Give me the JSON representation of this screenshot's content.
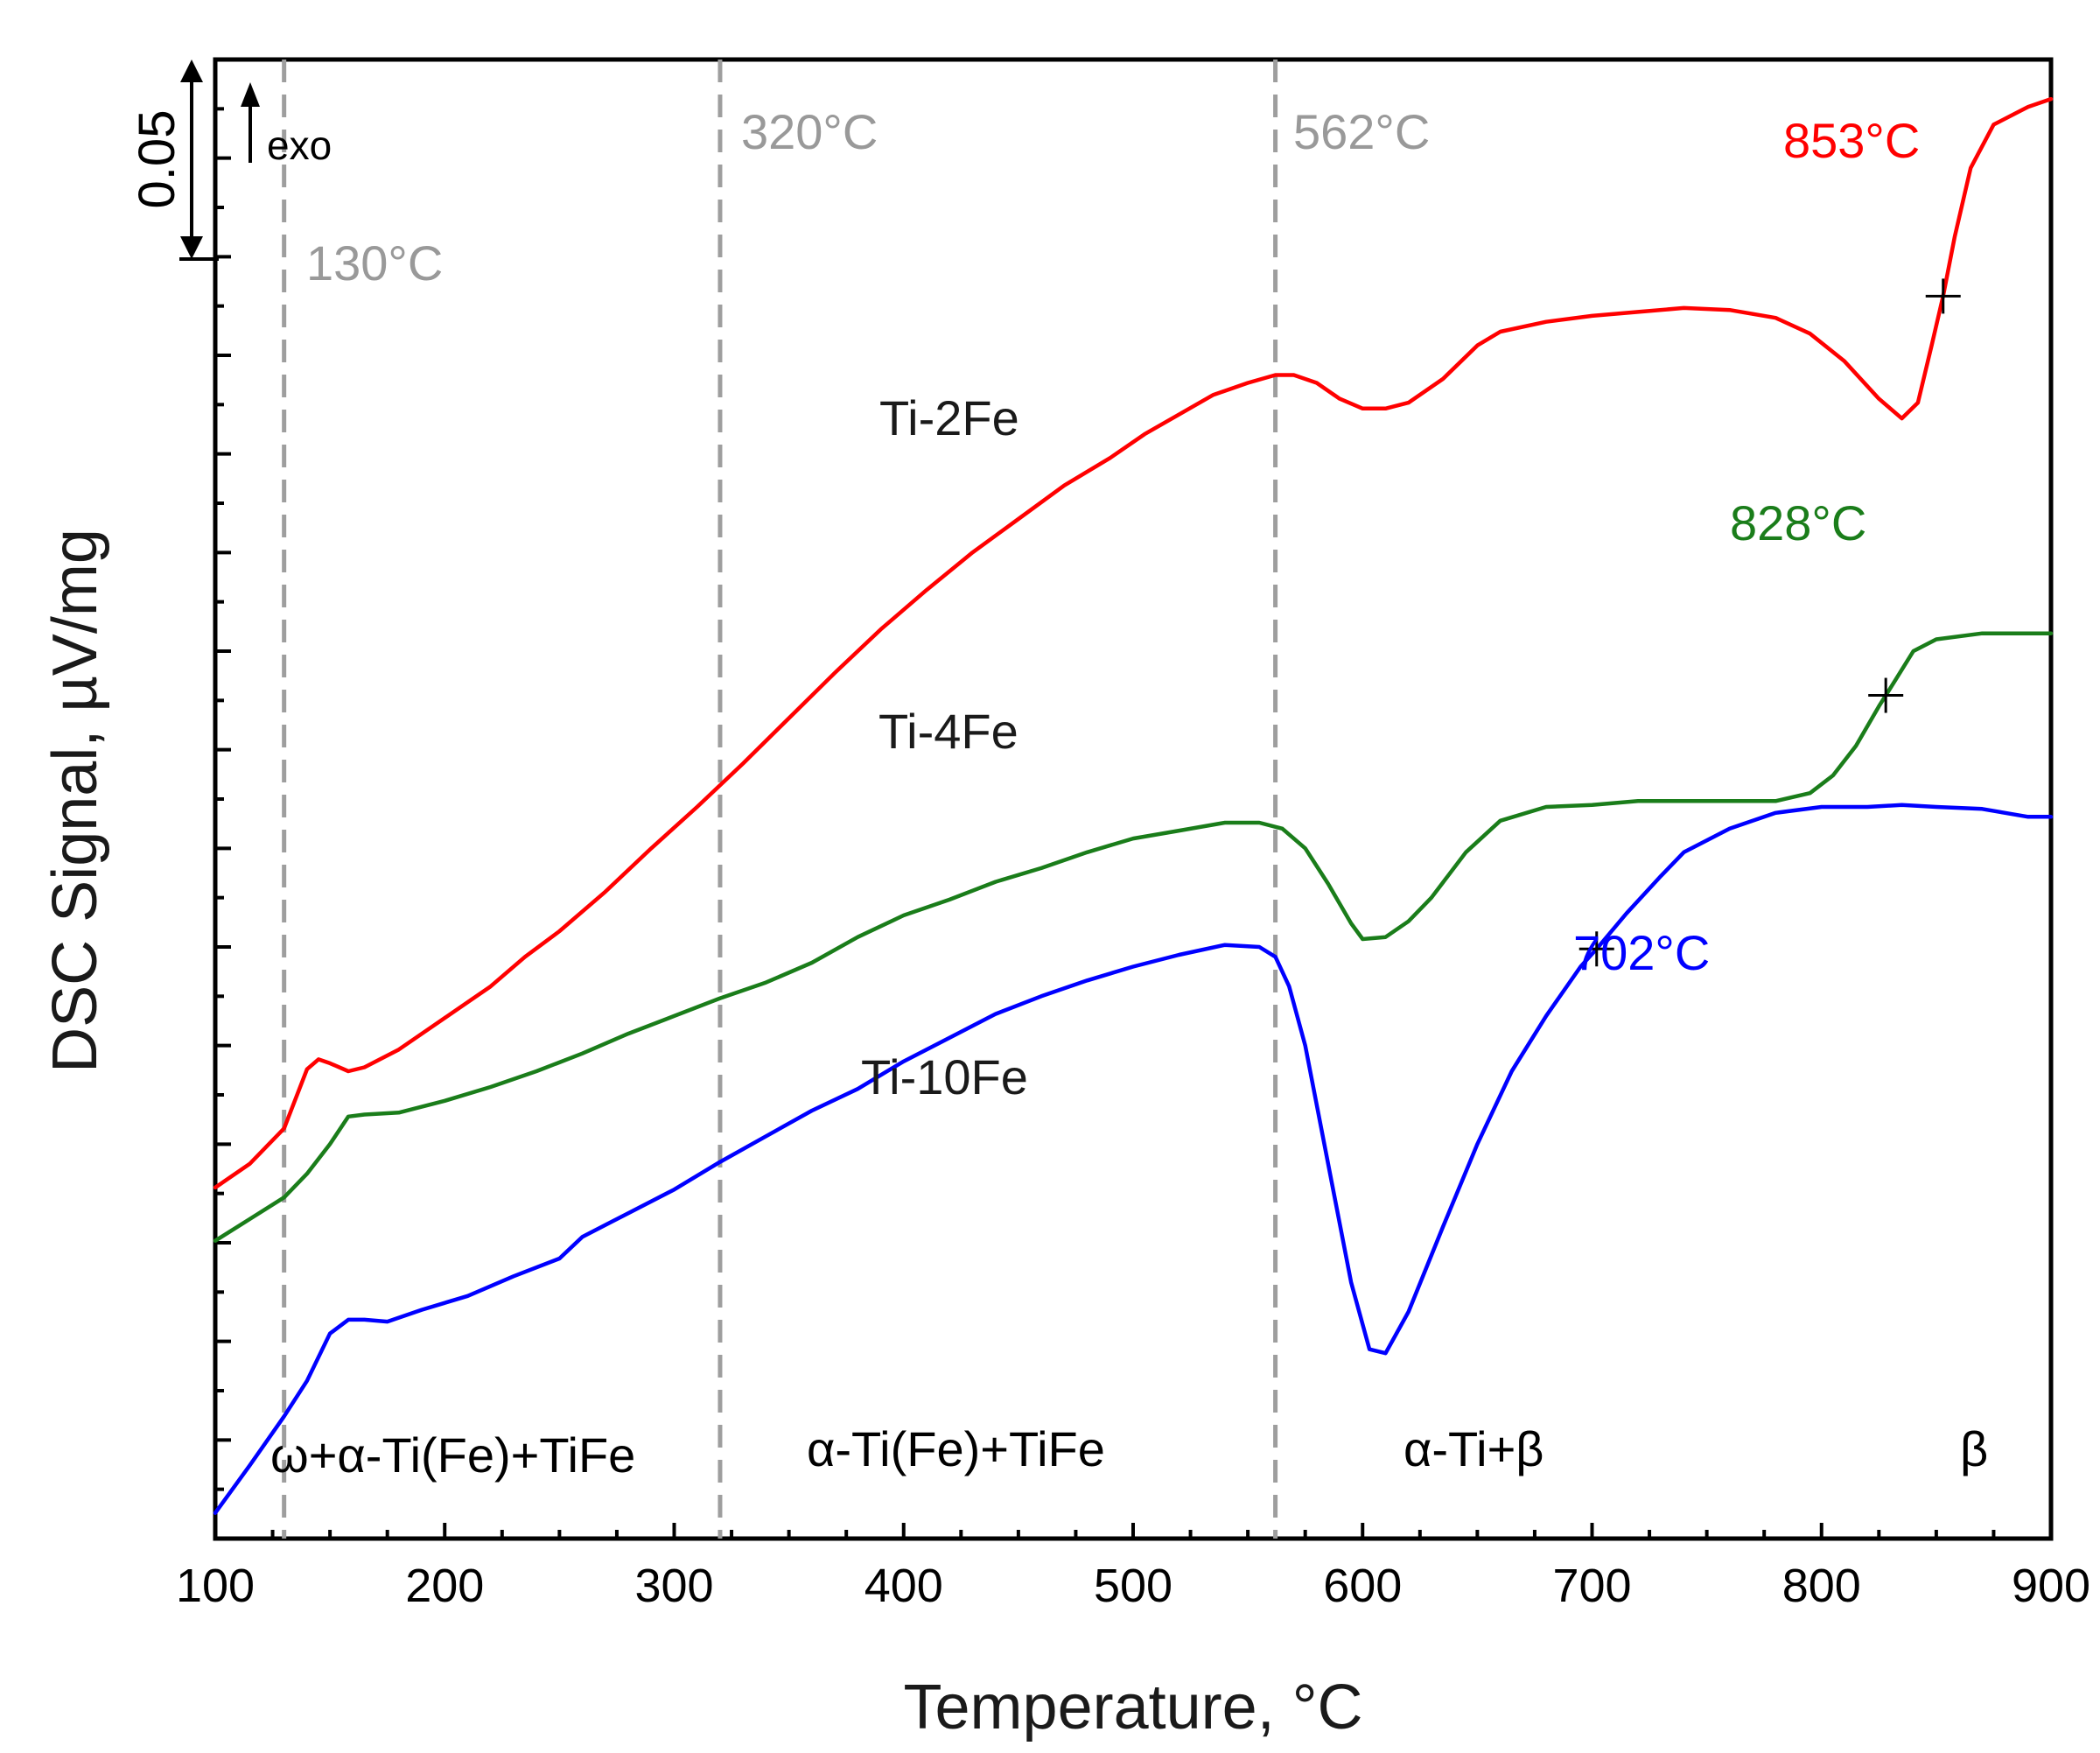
{
  "chart_data": {
    "type": "line",
    "title": "",
    "xlabel": "Temperature, °C",
    "ylabel": "DSC Signal, µV/mg",
    "xlim": [
      100,
      900
    ],
    "ylim": [
      -0.15,
      0.6
    ],
    "x_ticks": [
      "100",
      "200",
      "300",
      "400",
      "500",
      "600",
      "700",
      "800",
      "900"
    ],
    "y_tick_labels_shown": false,
    "grid": false,
    "scale_bar": {
      "label": "0.05",
      "value": 0.05
    },
    "exo_label": "exo",
    "vertical_lines": [
      {
        "x": 130,
        "label": "130°C"
      },
      {
        "x": 320,
        "label": "320°C"
      },
      {
        "x": 562,
        "label": "562°C"
      }
    ],
    "regions": [
      {
        "label": "ω+α-Ti(Fe)+TiFe",
        "x_center": 215
      },
      {
        "label": "α-Ti(Fe)+TiFe",
        "x_center": 442
      },
      {
        "label": "α-Ti+β",
        "x_center": 660
      },
      {
        "label": "β",
        "x_center": 865
      }
    ],
    "series": [
      {
        "name": "Ti-2Fe",
        "color": "#ff0000",
        "label_x": 472,
        "marker": {
          "x": 853,
          "label": "853°C"
        },
        "points": [
          [
            100,
            0.028
          ],
          [
            115,
            0.04
          ],
          [
            130,
            0.058
          ],
          [
            140,
            0.088
          ],
          [
            145,
            0.093
          ],
          [
            150,
            0.091
          ],
          [
            158,
            0.087
          ],
          [
            165,
            0.089
          ],
          [
            180,
            0.098
          ],
          [
            200,
            0.114
          ],
          [
            220,
            0.13
          ],
          [
            235,
            0.145
          ],
          [
            250,
            0.158
          ],
          [
            270,
            0.178
          ],
          [
            290,
            0.2
          ],
          [
            310,
            0.221
          ],
          [
            330,
            0.243
          ],
          [
            350,
            0.266
          ],
          [
            370,
            0.289
          ],
          [
            390,
            0.311
          ],
          [
            410,
            0.331
          ],
          [
            430,
            0.35
          ],
          [
            450,
            0.367
          ],
          [
            470,
            0.384
          ],
          [
            490,
            0.398
          ],
          [
            505,
            0.41
          ],
          [
            520,
            0.42
          ],
          [
            535,
            0.43
          ],
          [
            550,
            0.436
          ],
          [
            562,
            0.44
          ],
          [
            570,
            0.44
          ],
          [
            580,
            0.436
          ],
          [
            590,
            0.428
          ],
          [
            600,
            0.423
          ],
          [
            610,
            0.423
          ],
          [
            620,
            0.426
          ],
          [
            635,
            0.438
          ],
          [
            650,
            0.455
          ],
          [
            660,
            0.462
          ],
          [
            680,
            0.467
          ],
          [
            700,
            0.47
          ],
          [
            720,
            0.472
          ],
          [
            740,
            0.474
          ],
          [
            760,
            0.473
          ],
          [
            780,
            0.469
          ],
          [
            795,
            0.461
          ],
          [
            810,
            0.447
          ],
          [
            825,
            0.428
          ],
          [
            835,
            0.418
          ],
          [
            842,
            0.426
          ],
          [
            848,
            0.455
          ],
          [
            853,
            0.48
          ],
          [
            858,
            0.51
          ],
          [
            865,
            0.545
          ],
          [
            875,
            0.567
          ],
          [
            890,
            0.576
          ],
          [
            900,
            0.58
          ]
        ]
      },
      {
        "name": "Ti-4Fe",
        "color": "#1a7d1a",
        "label_x": 471,
        "marker": {
          "x": 828,
          "label": "828°C"
        },
        "points": [
          [
            100,
            0.001
          ],
          [
            115,
            0.012
          ],
          [
            130,
            0.023
          ],
          [
            140,
            0.035
          ],
          [
            150,
            0.05
          ],
          [
            158,
            0.064
          ],
          [
            165,
            0.065
          ],
          [
            180,
            0.066
          ],
          [
            200,
            0.072
          ],
          [
            220,
            0.079
          ],
          [
            240,
            0.087
          ],
          [
            260,
            0.096
          ],
          [
            280,
            0.106
          ],
          [
            300,
            0.115
          ],
          [
            320,
            0.124
          ],
          [
            340,
            0.132
          ],
          [
            360,
            0.142
          ],
          [
            380,
            0.155
          ],
          [
            400,
            0.166
          ],
          [
            420,
            0.174
          ],
          [
            440,
            0.183
          ],
          [
            460,
            0.19
          ],
          [
            480,
            0.198
          ],
          [
            500,
            0.205
          ],
          [
            520,
            0.209
          ],
          [
            540,
            0.213
          ],
          [
            555,
            0.213
          ],
          [
            565,
            0.21
          ],
          [
            575,
            0.2
          ],
          [
            585,
            0.182
          ],
          [
            595,
            0.162
          ],
          [
            600,
            0.154
          ],
          [
            610,
            0.155
          ],
          [
            620,
            0.163
          ],
          [
            630,
            0.175
          ],
          [
            645,
            0.198
          ],
          [
            660,
            0.214
          ],
          [
            680,
            0.221
          ],
          [
            700,
            0.222
          ],
          [
            720,
            0.224
          ],
          [
            740,
            0.224
          ],
          [
            760,
            0.224
          ],
          [
            780,
            0.224
          ],
          [
            795,
            0.228
          ],
          [
            805,
            0.237
          ],
          [
            815,
            0.252
          ],
          [
            825,
            0.272
          ],
          [
            832,
            0.285
          ],
          [
            840,
            0.3
          ],
          [
            850,
            0.306
          ],
          [
            870,
            0.309
          ],
          [
            890,
            0.309
          ],
          [
            900,
            0.309
          ]
        ]
      },
      {
        "name": "Ti-10Fe",
        "color": "#0000ff",
        "label_x": 465,
        "marker": {
          "x": 702,
          "label": "702°C"
        },
        "points": [
          [
            100,
            -0.137
          ],
          [
            115,
            -0.113
          ],
          [
            130,
            -0.088
          ],
          [
            140,
            -0.07
          ],
          [
            150,
            -0.046
          ],
          [
            158,
            -0.039
          ],
          [
            165,
            -0.039
          ],
          [
            175,
            -0.04
          ],
          [
            190,
            -0.034
          ],
          [
            210,
            -0.027
          ],
          [
            230,
            -0.017
          ],
          [
            250,
            -0.008
          ],
          [
            260,
            0.003
          ],
          [
            280,
            0.015
          ],
          [
            300,
            0.027
          ],
          [
            320,
            0.041
          ],
          [
            340,
            0.054
          ],
          [
            360,
            0.067
          ],
          [
            380,
            0.078
          ],
          [
            400,
            0.092
          ],
          [
            420,
            0.104
          ],
          [
            440,
            0.116
          ],
          [
            460,
            0.125
          ],
          [
            480,
            0.133
          ],
          [
            500,
            0.14
          ],
          [
            520,
            0.146
          ],
          [
            540,
            0.151
          ],
          [
            555,
            0.15
          ],
          [
            562,
            0.145
          ],
          [
            568,
            0.13
          ],
          [
            575,
            0.1
          ],
          [
            585,
            0.04
          ],
          [
            595,
            -0.02
          ],
          [
            603,
            -0.054
          ],
          [
            610,
            -0.056
          ],
          [
            620,
            -0.035
          ],
          [
            635,
            0.008
          ],
          [
            650,
            0.05
          ],
          [
            665,
            0.087
          ],
          [
            680,
            0.115
          ],
          [
            695,
            0.14
          ],
          [
            702,
            0.149
          ],
          [
            715,
            0.167
          ],
          [
            730,
            0.186
          ],
          [
            740,
            0.198
          ],
          [
            760,
            0.21
          ],
          [
            780,
            0.218
          ],
          [
            800,
            0.221
          ],
          [
            820,
            0.221
          ],
          [
            835,
            0.222
          ],
          [
            850,
            0.221
          ],
          [
            870,
            0.22
          ],
          [
            890,
            0.216
          ],
          [
            900,
            0.216
          ]
        ]
      }
    ]
  }
}
